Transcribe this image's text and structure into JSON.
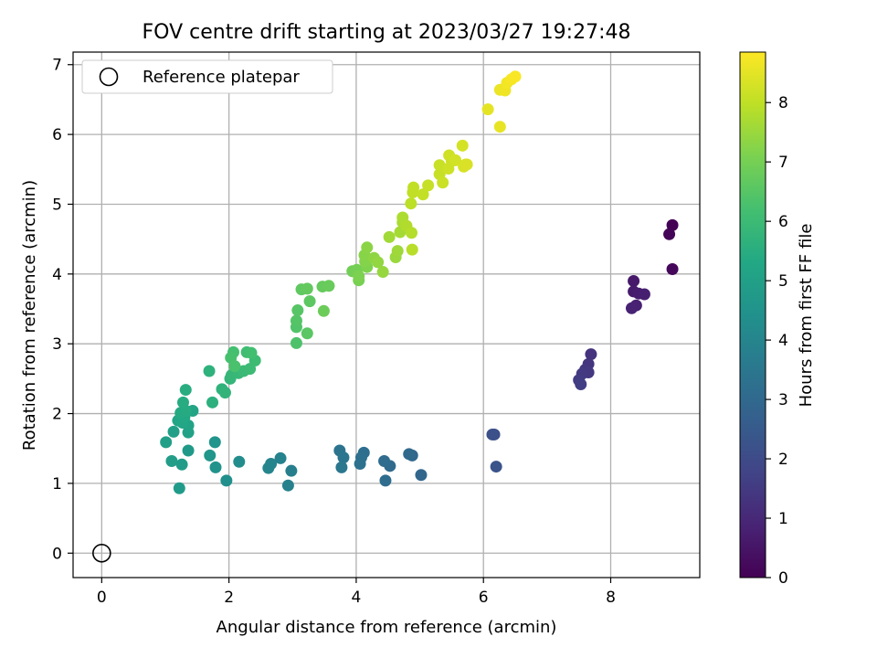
{
  "chart_data": {
    "type": "scatter",
    "title": "FOV centre drift starting at 2023/03/27 19:27:48",
    "xlabel": "Angular distance from reference (arcmin)",
    "ylabel": "Rotation from reference (arcmin)",
    "xlim": [
      -0.45,
      9.4
    ],
    "ylim": [
      -0.35,
      7.18
    ],
    "xticks": [
      "0",
      "2",
      "4",
      "6",
      "8"
    ],
    "yticks": [
      "0",
      "1",
      "2",
      "3",
      "4",
      "5",
      "6",
      "7"
    ],
    "grid": true,
    "legend": {
      "placement": "top-left",
      "entries": [
        "Reference platepar"
      ]
    },
    "reference_point": {
      "x": 0,
      "y": 0
    },
    "colorbar": {
      "label": "Hours from first FF file",
      "range": [
        0,
        8.85
      ],
      "ticks": [
        "0",
        "1",
        "2",
        "3",
        "4",
        "5",
        "6",
        "7",
        "8"
      ],
      "colormap": "viridis"
    },
    "points": [
      {
        "x": 8.97,
        "y": 4.7,
        "t": 0.03
      },
      {
        "x": 8.92,
        "y": 4.57,
        "t": 0.08
      },
      {
        "x": 8.97,
        "y": 4.07,
        "t": 0.15
      },
      {
        "x": 8.36,
        "y": 3.9,
        "t": 0.6
      },
      {
        "x": 8.36,
        "y": 3.75,
        "t": 0.65
      },
      {
        "x": 8.44,
        "y": 3.72,
        "t": 0.7
      },
      {
        "x": 8.53,
        "y": 3.71,
        "t": 0.75
      },
      {
        "x": 8.4,
        "y": 3.55,
        "t": 0.8
      },
      {
        "x": 8.33,
        "y": 3.51,
        "t": 0.85
      },
      {
        "x": 7.69,
        "y": 2.85,
        "t": 1.3
      },
      {
        "x": 7.65,
        "y": 2.71,
        "t": 1.35
      },
      {
        "x": 7.6,
        "y": 2.63,
        "t": 1.4
      },
      {
        "x": 7.65,
        "y": 2.59,
        "t": 1.45
      },
      {
        "x": 7.55,
        "y": 2.57,
        "t": 1.5
      },
      {
        "x": 7.5,
        "y": 2.48,
        "t": 1.55
      },
      {
        "x": 7.53,
        "y": 2.42,
        "t": 1.6
      },
      {
        "x": 6.17,
        "y": 1.7,
        "t": 2.1
      },
      {
        "x": 6.14,
        "y": 1.7,
        "t": 2.15
      },
      {
        "x": 6.2,
        "y": 1.24,
        "t": 2.25
      },
      {
        "x": 5.02,
        "y": 1.12,
        "t": 2.9
      },
      {
        "x": 4.88,
        "y": 1.4,
        "t": 2.95
      },
      {
        "x": 4.83,
        "y": 1.42,
        "t": 3.0
      },
      {
        "x": 4.53,
        "y": 1.25,
        "t": 3.05
      },
      {
        "x": 4.44,
        "y": 1.32,
        "t": 3.1
      },
      {
        "x": 4.46,
        "y": 1.04,
        "t": 3.15
      },
      {
        "x": 4.12,
        "y": 1.44,
        "t": 3.2
      },
      {
        "x": 4.08,
        "y": 1.37,
        "t": 3.25
      },
      {
        "x": 4.06,
        "y": 1.28,
        "t": 3.3
      },
      {
        "x": 3.74,
        "y": 1.47,
        "t": 3.4
      },
      {
        "x": 3.8,
        "y": 1.37,
        "t": 3.45
      },
      {
        "x": 3.77,
        "y": 1.23,
        "t": 3.5
      },
      {
        "x": 2.98,
        "y": 1.18,
        "t": 3.8
      },
      {
        "x": 2.93,
        "y": 0.97,
        "t": 3.85
      },
      {
        "x": 2.81,
        "y": 1.36,
        "t": 3.9
      },
      {
        "x": 2.66,
        "y": 1.28,
        "t": 3.95
      },
      {
        "x": 2.62,
        "y": 1.22,
        "t": 4.0
      },
      {
        "x": 2.16,
        "y": 1.31,
        "t": 4.3
      },
      {
        "x": 1.96,
        "y": 1.04,
        "t": 4.4
      },
      {
        "x": 1.79,
        "y": 1.23,
        "t": 4.5
      },
      {
        "x": 1.78,
        "y": 1.59,
        "t": 4.55
      },
      {
        "x": 1.7,
        "y": 1.4,
        "t": 4.6
      },
      {
        "x": 1.36,
        "y": 1.47,
        "t": 4.75
      },
      {
        "x": 1.22,
        "y": 0.93,
        "t": 4.8
      },
      {
        "x": 1.26,
        "y": 1.27,
        "t": 4.85
      },
      {
        "x": 1.1,
        "y": 1.32,
        "t": 4.9
      },
      {
        "x": 1.01,
        "y": 1.59,
        "t": 4.95
      },
      {
        "x": 1.13,
        "y": 1.74,
        "t": 5.0
      },
      {
        "x": 1.36,
        "y": 1.73,
        "t": 5.05
      },
      {
        "x": 1.36,
        "y": 1.83,
        "t": 5.1
      },
      {
        "x": 1.43,
        "y": 2.04,
        "t": 5.15
      },
      {
        "x": 1.2,
        "y": 1.9,
        "t": 5.2
      },
      {
        "x": 1.27,
        "y": 1.87,
        "t": 5.25
      },
      {
        "x": 1.3,
        "y": 1.95,
        "t": 5.3
      },
      {
        "x": 1.24,
        "y": 2.01,
        "t": 5.35
      },
      {
        "x": 1.32,
        "y": 2.04,
        "t": 5.4
      },
      {
        "x": 1.28,
        "y": 2.16,
        "t": 5.45
      },
      {
        "x": 1.32,
        "y": 2.34,
        "t": 5.5
      },
      {
        "x": 1.74,
        "y": 2.16,
        "t": 5.6
      },
      {
        "x": 1.69,
        "y": 2.61,
        "t": 5.65
      },
      {
        "x": 1.89,
        "y": 2.35,
        "t": 5.7
      },
      {
        "x": 1.94,
        "y": 2.3,
        "t": 5.75
      },
      {
        "x": 2.02,
        "y": 2.5,
        "t": 5.8
      },
      {
        "x": 2.04,
        "y": 2.55,
        "t": 5.85
      },
      {
        "x": 2.15,
        "y": 2.58,
        "t": 5.9
      },
      {
        "x": 2.23,
        "y": 2.61,
        "t": 5.95
      },
      {
        "x": 2.33,
        "y": 2.64,
        "t": 6.0
      },
      {
        "x": 2.41,
        "y": 2.76,
        "t": 6.05
      },
      {
        "x": 2.28,
        "y": 2.88,
        "t": 6.1
      },
      {
        "x": 2.35,
        "y": 2.87,
        "t": 6.15
      },
      {
        "x": 2.07,
        "y": 2.88,
        "t": 6.2
      },
      {
        "x": 2.03,
        "y": 2.8,
        "t": 6.25
      },
      {
        "x": 2.09,
        "y": 2.68,
        "t": 6.3
      },
      {
        "x": 3.06,
        "y": 3.01,
        "t": 6.35
      },
      {
        "x": 3.06,
        "y": 3.24,
        "t": 6.4
      },
      {
        "x": 3.06,
        "y": 3.33,
        "t": 6.45
      },
      {
        "x": 3.08,
        "y": 3.48,
        "t": 6.5
      },
      {
        "x": 3.23,
        "y": 3.15,
        "t": 6.55
      },
      {
        "x": 3.27,
        "y": 3.61,
        "t": 6.6
      },
      {
        "x": 3.14,
        "y": 3.78,
        "t": 6.65
      },
      {
        "x": 3.23,
        "y": 3.79,
        "t": 6.7
      },
      {
        "x": 3.47,
        "y": 3.82,
        "t": 6.75
      },
      {
        "x": 3.57,
        "y": 3.83,
        "t": 6.8
      },
      {
        "x": 3.49,
        "y": 3.47,
        "t": 6.85
      },
      {
        "x": 3.94,
        "y": 4.04,
        "t": 6.95
      },
      {
        "x": 4.01,
        "y": 4.06,
        "t": 7.0
      },
      {
        "x": 4.04,
        "y": 3.91,
        "t": 7.05
      },
      {
        "x": 4.04,
        "y": 3.97,
        "t": 7.1
      },
      {
        "x": 4.17,
        "y": 4.1,
        "t": 7.15
      },
      {
        "x": 4.14,
        "y": 4.18,
        "t": 7.2
      },
      {
        "x": 4.13,
        "y": 4.27,
        "t": 7.25
      },
      {
        "x": 4.17,
        "y": 4.38,
        "t": 7.3
      },
      {
        "x": 4.28,
        "y": 4.23,
        "t": 7.35
      },
      {
        "x": 4.34,
        "y": 4.17,
        "t": 7.4
      },
      {
        "x": 4.42,
        "y": 4.03,
        "t": 7.45
      },
      {
        "x": 4.62,
        "y": 4.24,
        "t": 7.5
      },
      {
        "x": 4.65,
        "y": 4.33,
        "t": 7.55
      },
      {
        "x": 4.52,
        "y": 4.53,
        "t": 7.6
      },
      {
        "x": 4.69,
        "y": 4.6,
        "t": 7.65
      },
      {
        "x": 4.73,
        "y": 4.74,
        "t": 7.7
      },
      {
        "x": 4.73,
        "y": 4.81,
        "t": 7.75
      },
      {
        "x": 4.79,
        "y": 4.69,
        "t": 7.8
      },
      {
        "x": 4.87,
        "y": 4.59,
        "t": 7.85
      },
      {
        "x": 4.88,
        "y": 4.35,
        "t": 7.9
      },
      {
        "x": 4.86,
        "y": 5.01,
        "t": 7.95
      },
      {
        "x": 4.89,
        "y": 5.17,
        "t": 8.0
      },
      {
        "x": 4.9,
        "y": 5.24,
        "t": 8.02
      },
      {
        "x": 5.05,
        "y": 5.14,
        "t": 8.05
      },
      {
        "x": 5.13,
        "y": 5.27,
        "t": 8.08
      },
      {
        "x": 5.31,
        "y": 5.43,
        "t": 8.1
      },
      {
        "x": 5.31,
        "y": 5.56,
        "t": 8.12
      },
      {
        "x": 5.36,
        "y": 5.31,
        "t": 8.15
      },
      {
        "x": 5.45,
        "y": 5.51,
        "t": 8.18
      },
      {
        "x": 5.5,
        "y": 5.62,
        "t": 8.2
      },
      {
        "x": 5.46,
        "y": 5.7,
        "t": 8.22
      },
      {
        "x": 5.56,
        "y": 5.63,
        "t": 8.25
      },
      {
        "x": 5.67,
        "y": 5.84,
        "t": 8.28
      },
      {
        "x": 5.72,
        "y": 5.57,
        "t": 8.3
      },
      {
        "x": 5.69,
        "y": 5.54,
        "t": 8.32
      },
      {
        "x": 5.74,
        "y": 5.57,
        "t": 8.35
      },
      {
        "x": 6.07,
        "y": 6.36,
        "t": 8.5
      },
      {
        "x": 6.26,
        "y": 6.11,
        "t": 8.55
      },
      {
        "x": 6.26,
        "y": 6.64,
        "t": 8.6
      },
      {
        "x": 6.34,
        "y": 6.63,
        "t": 8.65
      },
      {
        "x": 6.37,
        "y": 6.74,
        "t": 8.7
      },
      {
        "x": 6.44,
        "y": 6.79,
        "t": 8.75
      },
      {
        "x": 6.5,
        "y": 6.83,
        "t": 8.8
      }
    ]
  }
}
